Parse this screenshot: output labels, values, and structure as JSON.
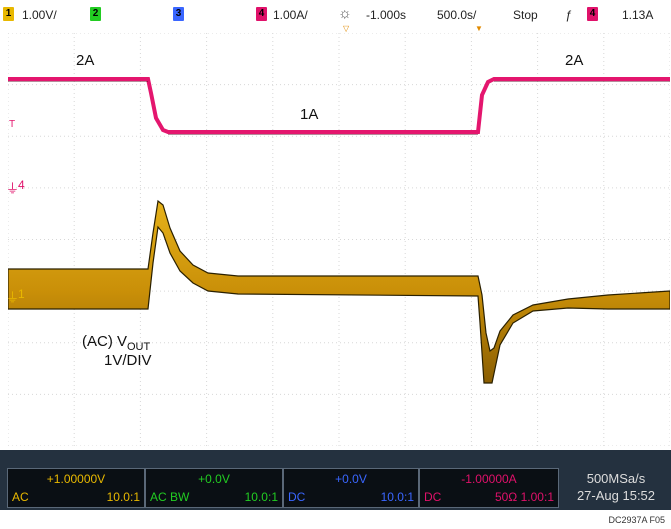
{
  "top_bar": {
    "ch1_num": "1",
    "ch1_scale": "1.00V/",
    "ch2_num": "2",
    "ch3_num": "3",
    "ch4_num": "4",
    "ch4_scale": "1.00A/",
    "acq_icon": "sun-icon",
    "offset": "-1.000s",
    "timebase": "500.0s/",
    "run_state": "Stop",
    "trigger_icon": "trigger-edge-icon",
    "trig_ch": "4",
    "trig_level": "1.13A"
  },
  "screen": {
    "label_2a_left": "2A",
    "label_1a": "1A",
    "label_2a_right": "2A",
    "vout_line1_prefix": "(AC) V",
    "vout_sub": "OUT",
    "vout_line2": "1V/DIV",
    "marker_ch4": "4",
    "marker_ch1": "1",
    "marker_trig": "T"
  },
  "bottom_bar": {
    "ch1": {
      "value": "+1.00000V",
      "coupling": "AC",
      "probe": "10.0:1"
    },
    "ch2": {
      "value": "+0.0V",
      "coupling": "AC BW",
      "probe": "10.0:1"
    },
    "ch3": {
      "value": "+0.0V",
      "coupling": "DC",
      "probe": "10.0:1"
    },
    "ch4": {
      "value": "-1.00000A",
      "coupling": "DC",
      "impedance": "50Ω",
      "probe": "1.00:1"
    },
    "sample_rate": "500MSa/s",
    "datetime": "27-Aug 15:52"
  },
  "figure_id": "DC2937A F05",
  "colors": {
    "ch1": "#e8b800",
    "ch2": "#22cc22",
    "ch3": "#3a66ff",
    "ch4": "#e0116a",
    "trace_current": "#e4166e",
    "trace_vout_fill": "#c9930a",
    "trace_vout_edge": "#2a2000"
  }
}
